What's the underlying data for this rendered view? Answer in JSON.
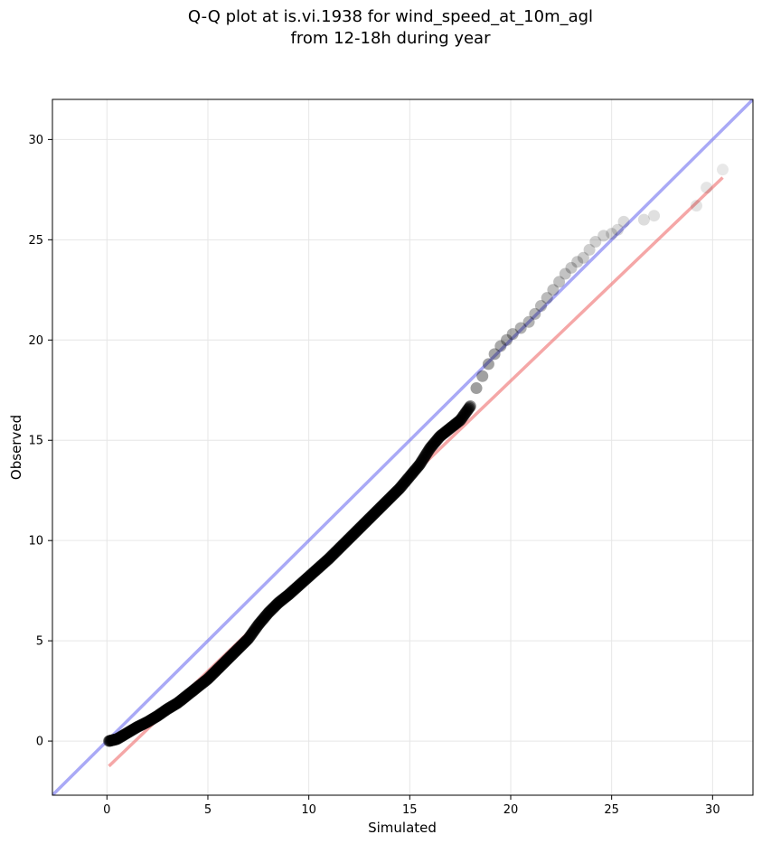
{
  "chart_data": {
    "type": "scatter",
    "title_line1": "Q-Q plot at is.vi.1938 for wind_speed_at_10m_agl",
    "title_line2": "from 12-18h during year",
    "xlabel": "Simulated",
    "ylabel": "Observed",
    "xlim": [
      -2.7,
      32.0
    ],
    "ylim": [
      -2.7,
      32.0
    ],
    "x_ticks": [
      0,
      5,
      10,
      15,
      20,
      25,
      30
    ],
    "y_ticks": [
      0,
      5,
      10,
      15,
      20,
      25,
      30
    ],
    "x_tick_labels": [
      "0",
      "5",
      "10",
      "15",
      "20",
      "25",
      "30"
    ],
    "y_tick_labels": [
      "0",
      "5",
      "10",
      "15",
      "20",
      "25",
      "30"
    ],
    "grid": true,
    "colors": {
      "points": "#000000",
      "identity_line": "#6f6ff0",
      "fit_line": "#f07878",
      "grid": "#e6e6e6"
    },
    "identity_line": {
      "from": [
        -2.7,
        -2.7
      ],
      "to": [
        32.0,
        32.0
      ]
    },
    "fit_line": {
      "from": [
        0.1,
        -1.25
      ],
      "to": [
        30.5,
        28.1
      ]
    },
    "dense_curve": [
      [
        0.1,
        0.0
      ],
      [
        0.5,
        0.1
      ],
      [
        1.0,
        0.4
      ],
      [
        1.5,
        0.7
      ],
      [
        2.0,
        0.95
      ],
      [
        2.5,
        1.25
      ],
      [
        3.0,
        1.6
      ],
      [
        3.5,
        1.9
      ],
      [
        4.0,
        2.3
      ],
      [
        4.5,
        2.7
      ],
      [
        5.0,
        3.1
      ],
      [
        5.5,
        3.6
      ],
      [
        6.0,
        4.1
      ],
      [
        6.5,
        4.6
      ],
      [
        7.0,
        5.1
      ],
      [
        7.5,
        5.8
      ],
      [
        8.0,
        6.4
      ],
      [
        8.5,
        6.9
      ],
      [
        9.0,
        7.3
      ],
      [
        9.5,
        7.75
      ],
      [
        10.0,
        8.2
      ],
      [
        10.5,
        8.65
      ],
      [
        11.0,
        9.1
      ],
      [
        11.5,
        9.6
      ],
      [
        12.0,
        10.1
      ],
      [
        12.5,
        10.6
      ],
      [
        13.0,
        11.1
      ],
      [
        13.5,
        11.6
      ],
      [
        14.0,
        12.1
      ],
      [
        14.5,
        12.6
      ],
      [
        15.0,
        13.2
      ],
      [
        15.5,
        13.8
      ],
      [
        16.0,
        14.6
      ],
      [
        16.5,
        15.2
      ],
      [
        17.0,
        15.6
      ],
      [
        17.5,
        16.0
      ],
      [
        18.0,
        16.7
      ]
    ],
    "sparse_points": [
      [
        18.3,
        17.6
      ],
      [
        18.6,
        18.2
      ],
      [
        18.9,
        18.8
      ],
      [
        19.2,
        19.3
      ],
      [
        19.5,
        19.7
      ],
      [
        19.8,
        20.0
      ],
      [
        20.1,
        20.3
      ],
      [
        20.5,
        20.6
      ],
      [
        20.9,
        20.9
      ],
      [
        21.2,
        21.3
      ],
      [
        21.5,
        21.7
      ],
      [
        21.8,
        22.1
      ],
      [
        22.1,
        22.5
      ],
      [
        22.4,
        22.9
      ],
      [
        22.7,
        23.3
      ],
      [
        23.0,
        23.6
      ],
      [
        23.3,
        23.9
      ],
      [
        23.6,
        24.1
      ],
      [
        23.9,
        24.5
      ],
      [
        24.2,
        24.9
      ],
      [
        24.6,
        25.2
      ],
      [
        25.0,
        25.3
      ],
      [
        25.3,
        25.5
      ],
      [
        25.6,
        25.9
      ],
      [
        26.6,
        26.0
      ],
      [
        27.1,
        26.2
      ],
      [
        29.2,
        26.7
      ],
      [
        29.7,
        27.6
      ],
      [
        30.5,
        28.5
      ]
    ]
  }
}
